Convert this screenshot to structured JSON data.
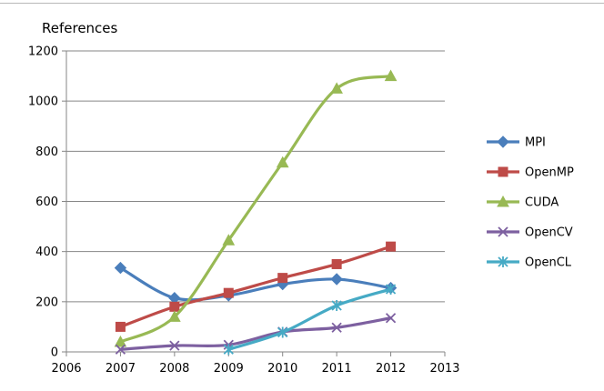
{
  "chart_data": {
    "type": "line",
    "title": "",
    "xlabel": "",
    "ylabel": "References",
    "x_ticks": [
      2006,
      2007,
      2008,
      2009,
      2010,
      2011,
      2012,
      2013
    ],
    "y_ticks": [
      0,
      200,
      400,
      600,
      800,
      1000,
      1200
    ],
    "xlim": [
      2006,
      2013
    ],
    "ylim": [
      0,
      1200
    ],
    "grid": "horizontal",
    "legend_position": "right",
    "smooth": true,
    "series": [
      {
        "name": "MPI",
        "color": "#4a7ebb",
        "marker": "diamond",
        "x": [
          2007,
          2008,
          2009,
          2010,
          2011,
          2012
        ],
        "y": [
          335,
          215,
          225,
          270,
          290,
          255
        ]
      },
      {
        "name": "OpenMP",
        "color": "#be4b48",
        "marker": "square",
        "x": [
          2007,
          2008,
          2009,
          2010,
          2011,
          2012
        ],
        "y": [
          100,
          180,
          235,
          295,
          350,
          420
        ]
      },
      {
        "name": "CUDA",
        "color": "#98b954",
        "marker": "triangle",
        "x": [
          2007,
          2008,
          2009,
          2010,
          2011,
          2012
        ],
        "y": [
          40,
          140,
          445,
          755,
          1050,
          1100
        ]
      },
      {
        "name": "OpenCV",
        "color": "#7d60a0",
        "marker": "x",
        "x": [
          2007,
          2008,
          2009,
          2010,
          2011,
          2012
        ],
        "y": [
          10,
          25,
          28,
          80,
          97,
          135
        ]
      },
      {
        "name": "OpenCL",
        "color": "#46aac5",
        "marker": "star",
        "x": [
          2009,
          2010,
          2011,
          2012
        ],
        "y": [
          10,
          78,
          185,
          250
        ]
      }
    ]
  }
}
